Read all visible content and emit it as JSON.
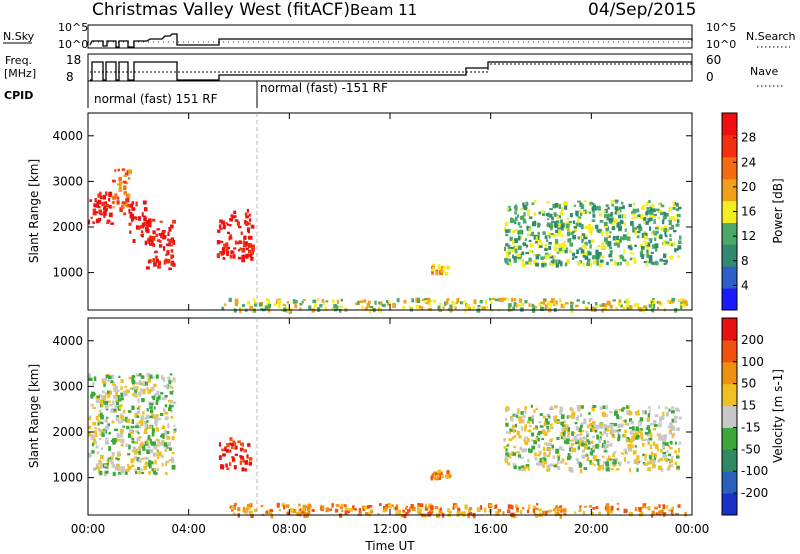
{
  "header": {
    "station": "Christmas Valley West (fitACF)",
    "beam": "Beam 11",
    "date": "04/Sep/2015"
  },
  "panels": {
    "nsky": {
      "left_label": "N.Sky",
      "right_label": "N.Search",
      "ticks_left": [
        "10^5",
        "10^0"
      ],
      "ticks_right": [
        "10^5",
        "10^0"
      ]
    },
    "freq": {
      "left_label_line1": "Freq.",
      "left_label_line2": "[MHz]",
      "right_label": "Nave",
      "ticks_left": [
        "18",
        "8"
      ],
      "ticks_right": [
        "60",
        "0"
      ]
    },
    "cpid": {
      "label": "CPID",
      "programs": [
        "normal (fast) 151 RF",
        "normal (fast) -151 RF"
      ]
    }
  },
  "colors": {
    "power_scale": [
      "#1a1aff",
      "#2e5fc8",
      "#2f8a6e",
      "#4aa86a",
      "#f2ee22",
      "#f2a01a",
      "#f56a12",
      "#f23010",
      "#ee1010"
    ],
    "velocity_scale": [
      "#1830c8",
      "#2a5fc0",
      "#2e8a60",
      "#3ca83c",
      "#c8c8c8",
      "#f0c020",
      "#f09010",
      "#f05010",
      "#e81010"
    ]
  },
  "chart_data": [
    {
      "type": "heatmap",
      "title": "Power",
      "xlabel": "",
      "ylabel": "Slant Range [km]",
      "colorbar_label": "Power [dB]",
      "colorbar_ticks": [
        "28",
        "24",
        "20",
        "16",
        "12",
        "8",
        "4"
      ],
      "xlim": [
        0,
        24
      ],
      "ylim": [
        180,
        4500
      ],
      "x_ticks": [
        "00:00",
        "04:00",
        "08:00",
        "12:00",
        "16:00",
        "20:00",
        "00:00"
      ],
      "y_ticks": [
        "1000",
        "2000",
        "3000",
        "4000"
      ],
      "regions": [
        {
          "t": [
            0.0,
            0.9
          ],
          "r": [
            2100,
            2800
          ],
          "level": 8
        },
        {
          "t": [
            0.9,
            1.6
          ],
          "r": [
            2300,
            3300
          ],
          "level": 6
        },
        {
          "t": [
            1.6,
            2.3
          ],
          "r": [
            1700,
            2600
          ],
          "level": 8
        },
        {
          "t": [
            2.3,
            3.4
          ],
          "r": [
            1100,
            2200
          ],
          "level": 8
        },
        {
          "t": [
            5.1,
            6.5
          ],
          "r": [
            1300,
            2400
          ],
          "level": 8
        },
        {
          "t": [
            13.6,
            14.3
          ],
          "r": [
            1000,
            1200
          ],
          "level": 5
        },
        {
          "t": [
            16.5,
            23.5
          ],
          "r": [
            1200,
            2600
          ],
          "level": 3
        },
        {
          "t": [
            5.3,
            23.8
          ],
          "r": [
            200,
            450
          ],
          "level": 4
        }
      ]
    },
    {
      "type": "heatmap",
      "title": "Velocity",
      "xlabel": "Time UT",
      "ylabel": "Slant Range [km]",
      "colorbar_label": "Velocity [m s-1]",
      "colorbar_ticks": [
        "200",
        "100",
        "50",
        "15",
        "-15",
        "-50",
        "-100",
        "-200"
      ],
      "xlim": [
        0,
        24
      ],
      "ylim": [
        180,
        4500
      ],
      "x_ticks": [
        "00:00",
        "04:00",
        "08:00",
        "12:00",
        "16:00",
        "20:00",
        "00:00"
      ],
      "y_ticks": [
        "1000",
        "2000",
        "3000",
        "4000"
      ],
      "regions": [
        {
          "t": [
            0.0,
            3.4
          ],
          "r": [
            1100,
            3300
          ],
          "level": 4
        },
        {
          "t": [
            5.2,
            6.4
          ],
          "r": [
            1200,
            1900
          ],
          "level": 8
        },
        {
          "t": [
            13.6,
            14.3
          ],
          "r": [
            1000,
            1200
          ],
          "level": 6
        },
        {
          "t": [
            16.5,
            23.5
          ],
          "r": [
            1200,
            2600
          ],
          "level": 4
        },
        {
          "t": [
            5.3,
            23.8
          ],
          "r": [
            200,
            450
          ],
          "level": 6
        }
      ]
    }
  ]
}
